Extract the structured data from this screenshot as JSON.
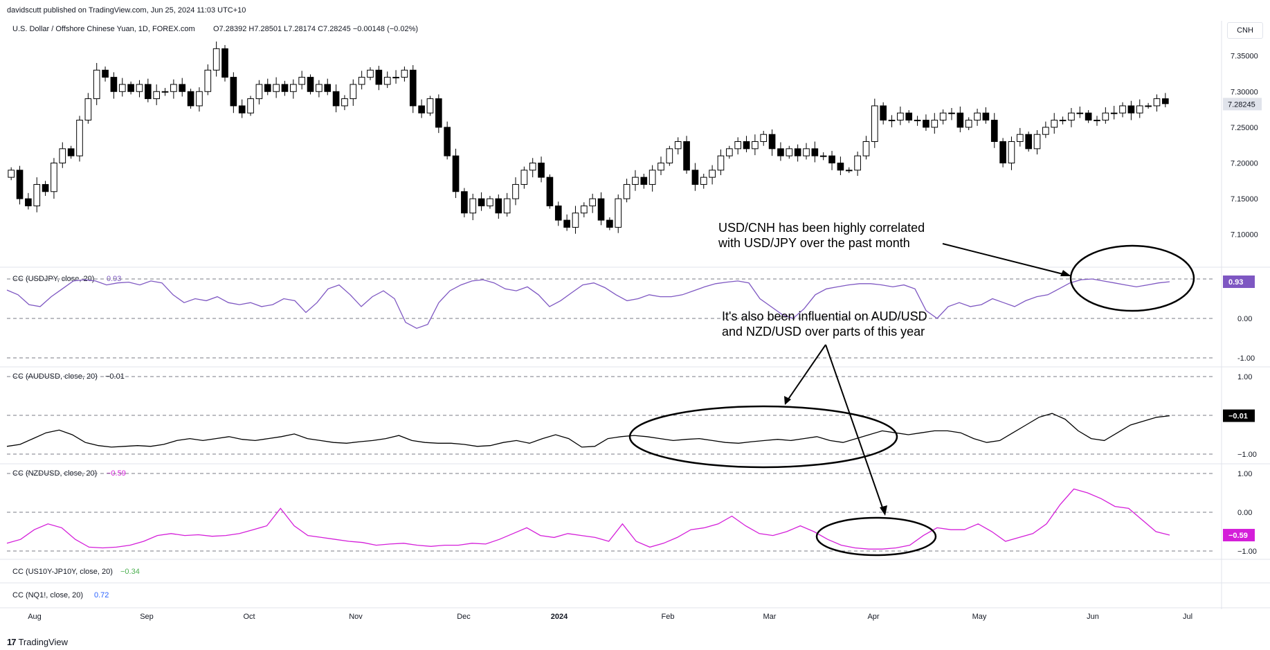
{
  "header": {
    "published": "davidscutt published on TradingView.com, Jun 25, 2024 11:03 UTC+10",
    "symbol_line": "U.S. Dollar / Offshore Chinese Yuan, 1D, FOREX.com",
    "ohlc": "O7.28392  H7.28501  L7.28174  C7.28245  −0.00148 (−0.02%)"
  },
  "currency_button": "CNH",
  "footer_brand": "TradingView",
  "colors": {
    "up": "#ffffff",
    "down": "#000000",
    "usdjpy": "#7e57c2",
    "audusd": "#000000",
    "nzdusd": "#d41ed9",
    "green": "#4caf50",
    "blue": "#2962ff"
  },
  "chart_data": [
    {
      "type": "candlestick",
      "title": "U.S. Dollar / Offshore Chinese Yuan, 1D, FOREX.com",
      "ylim": [
        7.06,
        7.37
      ],
      "y_ticks": [
        "7.35000",
        "7.30000",
        "7.25000",
        "7.20000",
        "7.15000",
        "7.10000"
      ],
      "last_value": "7.28245",
      "x_ticks": [
        "Aug",
        "Sep",
        "Oct",
        "Nov",
        "Dec",
        "2024",
        "Feb",
        "Mar",
        "Apr",
        "May",
        "Jun",
        "Jul"
      ],
      "close_series": [
        7.19,
        7.15,
        7.14,
        7.17,
        7.16,
        7.2,
        7.22,
        7.21,
        7.26,
        7.29,
        7.33,
        7.32,
        7.3,
        7.31,
        7.3,
        7.31,
        7.29,
        7.3,
        7.3,
        7.31,
        7.3,
        7.28,
        7.3,
        7.33,
        7.36,
        7.32,
        7.28,
        7.27,
        7.29,
        7.31,
        7.3,
        7.31,
        7.3,
        7.31,
        7.32,
        7.3,
        7.31,
        7.3,
        7.28,
        7.29,
        7.31,
        7.32,
        7.33,
        7.31,
        7.32,
        7.32,
        7.33,
        7.28,
        7.27,
        7.29,
        7.25,
        7.21,
        7.16,
        7.13,
        7.15,
        7.14,
        7.15,
        7.13,
        7.15,
        7.17,
        7.19,
        7.2,
        7.18,
        7.14,
        7.12,
        7.11,
        7.13,
        7.14,
        7.15,
        7.12,
        7.11,
        7.15,
        7.17,
        7.18,
        7.17,
        7.19,
        7.2,
        7.22,
        7.23,
        7.19,
        7.17,
        7.18,
        7.19,
        7.21,
        7.22,
        7.23,
        7.22,
        7.23,
        7.24,
        7.22,
        7.21,
        7.22,
        7.21,
        7.22,
        7.21,
        7.21,
        7.2,
        7.19,
        7.19,
        7.21,
        7.23,
        7.28,
        7.26,
        7.26,
        7.27,
        7.26,
        7.26,
        7.25,
        7.26,
        7.27,
        7.27,
        7.25,
        7.26,
        7.27,
        7.26,
        7.23,
        7.2,
        7.23,
        7.24,
        7.22,
        7.24,
        7.25,
        7.26,
        7.26,
        7.27,
        7.27,
        7.26,
        7.26,
        7.27,
        7.27,
        7.28,
        7.27,
        7.28,
        7.28,
        7.29,
        7.283
      ],
      "series_annotations": [
        "USD/CNH has been highly correlated\nwith USD/JPY over the past month",
        "It's also been influential on AUD/USD\nand NZD/USD over parts of this year"
      ]
    },
    {
      "type": "line",
      "title": "CC (USDJPY, close, 20)",
      "value": "0.93",
      "ylim": [
        -1.0,
        1.0
      ],
      "y_ticks": [
        "0.00",
        "-1.00"
      ],
      "series": [
        {
          "values": [
            0.72,
            0.6,
            0.35,
            0.3,
            0.55,
            0.75,
            0.95,
            0.98,
            0.95,
            0.85,
            0.9,
            0.92,
            0.85,
            0.95,
            0.9,
            0.6,
            0.4,
            0.5,
            0.45,
            0.55,
            0.4,
            0.35,
            0.4,
            0.3,
            0.35,
            0.5,
            0.45,
            0.15,
            0.4,
            0.75,
            0.85,
            0.6,
            0.3,
            0.55,
            0.7,
            0.5,
            -0.1,
            -0.25,
            -0.15,
            0.4,
            0.7,
            0.85,
            0.95,
            0.98,
            0.9,
            0.75,
            0.7,
            0.8,
            0.6,
            0.3,
            0.45,
            0.65,
            0.85,
            0.9,
            0.78,
            0.6,
            0.45,
            0.5,
            0.6,
            0.55,
            0.55,
            0.6,
            0.7,
            0.8,
            0.88,
            0.92,
            0.95,
            0.9,
            0.5,
            0.3,
            0.1,
            0.0,
            0.25,
            0.6,
            0.75,
            0.8,
            0.85,
            0.88,
            0.88,
            0.85,
            0.8,
            0.85,
            0.75,
            0.2,
            0.0,
            0.3,
            0.4,
            0.3,
            0.35,
            0.5,
            0.4,
            0.3,
            0.45,
            0.55,
            0.6,
            0.75,
            0.9,
            0.98,
            1.0,
            0.95,
            0.9,
            0.85,
            0.8,
            0.85,
            0.9,
            0.93
          ]
        }
      ]
    },
    {
      "type": "line",
      "title": "CC (AUDUSD, close, 20)",
      "value": "−0.01",
      "ylim": [
        -1.0,
        1.0
      ],
      "y_ticks": [
        "1.00",
        "−1.00"
      ],
      "series": [
        {
          "values": [
            -0.8,
            -0.75,
            -0.6,
            -0.45,
            -0.38,
            -0.5,
            -0.7,
            -0.78,
            -0.82,
            -0.8,
            -0.78,
            -0.8,
            -0.75,
            -0.65,
            -0.6,
            -0.65,
            -0.6,
            -0.55,
            -0.62,
            -0.65,
            -0.6,
            -0.55,
            -0.48,
            -0.6,
            -0.65,
            -0.7,
            -0.72,
            -0.68,
            -0.65,
            -0.6,
            -0.52,
            -0.65,
            -0.7,
            -0.72,
            -0.72,
            -0.75,
            -0.8,
            -0.78,
            -0.7,
            -0.65,
            -0.72,
            -0.6,
            -0.5,
            -0.6,
            -0.82,
            -0.8,
            -0.6,
            -0.55,
            -0.52,
            -0.55,
            -0.6,
            -0.65,
            -0.62,
            -0.6,
            -0.65,
            -0.7,
            -0.72,
            -0.68,
            -0.65,
            -0.62,
            -0.65,
            -0.6,
            -0.55,
            -0.65,
            -0.7,
            -0.6,
            -0.5,
            -0.4,
            -0.45,
            -0.5,
            -0.45,
            -0.4,
            -0.4,
            -0.45,
            -0.6,
            -0.7,
            -0.65,
            -0.45,
            -0.25,
            -0.05,
            0.05,
            -0.1,
            -0.4,
            -0.6,
            -0.65,
            -0.45,
            -0.25,
            -0.15,
            -0.05,
            -0.01
          ]
        }
      ]
    },
    {
      "type": "line",
      "title": "CC (NZDUSD, close, 20)",
      "value": "−0.59",
      "ylim": [
        -1.0,
        1.0
      ],
      "y_ticks": [
        "1.00",
        "0.00",
        "−1.00"
      ],
      "series": [
        {
          "values": [
            -0.8,
            -0.7,
            -0.45,
            -0.3,
            -0.4,
            -0.7,
            -0.9,
            -0.92,
            -0.9,
            -0.85,
            -0.75,
            -0.6,
            -0.55,
            -0.6,
            -0.58,
            -0.62,
            -0.6,
            -0.55,
            -0.45,
            -0.35,
            0.1,
            -0.35,
            -0.6,
            -0.65,
            -0.7,
            -0.75,
            -0.78,
            -0.85,
            -0.82,
            -0.8,
            -0.85,
            -0.88,
            -0.85,
            -0.85,
            -0.8,
            -0.82,
            -0.7,
            -0.55,
            -0.4,
            -0.6,
            -0.65,
            -0.55,
            -0.6,
            -0.65,
            -0.75,
            -0.3,
            -0.75,
            -0.9,
            -0.8,
            -0.65,
            -0.45,
            -0.4,
            -0.3,
            -0.1,
            -0.35,
            -0.55,
            -0.6,
            -0.5,
            -0.35,
            -0.5,
            -0.7,
            -0.85,
            -0.92,
            -0.95,
            -0.95,
            -0.92,
            -0.85,
            -0.6,
            -0.4,
            -0.45,
            -0.45,
            -0.3,
            -0.5,
            -0.75,
            -0.65,
            -0.55,
            -0.3,
            0.2,
            0.6,
            0.5,
            0.35,
            0.15,
            0.1,
            -0.2,
            -0.5,
            -0.59
          ]
        }
      ]
    },
    {
      "type": "line",
      "title": "CC (US10Y-JP10Y, close, 20)",
      "value": "−0.34"
    },
    {
      "type": "line",
      "title": "CC (NQ1!, close, 20)",
      "value": "0.72"
    }
  ]
}
